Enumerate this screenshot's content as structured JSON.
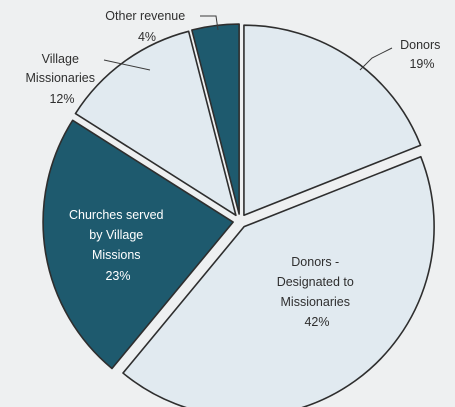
{
  "chart_data": {
    "type": "pie",
    "title": "",
    "slices": [
      {
        "label": "Donors",
        "value": 19,
        "value_label": "19%",
        "color": "#e1eaf0"
      },
      {
        "label": "Donors - Designated to Missionaries",
        "value": 42,
        "value_label": "42%",
        "color": "#e1eaf0"
      },
      {
        "label": "Churches served by Village Missions",
        "value": 23,
        "value_label": "23%",
        "color": "#1e5a6e"
      },
      {
        "label": "Village Missionaries",
        "value": 12,
        "value_label": "12%",
        "color": "#e1eaf0"
      },
      {
        "label": "Other revenue",
        "value": 4,
        "value_label": "4%",
        "color": "#1e5a6e"
      }
    ],
    "labels": {
      "donors": [
        "Donors",
        "19%"
      ],
      "designated": [
        "Donors -",
        "Designated to",
        "Missionaries",
        "42%"
      ],
      "churches": [
        "Churches served",
        "by Village",
        "Missions",
        "23%"
      ],
      "village": [
        "Village",
        "Missionaries",
        "12%"
      ],
      "other": [
        "Other revenue",
        "4%"
      ]
    }
  }
}
